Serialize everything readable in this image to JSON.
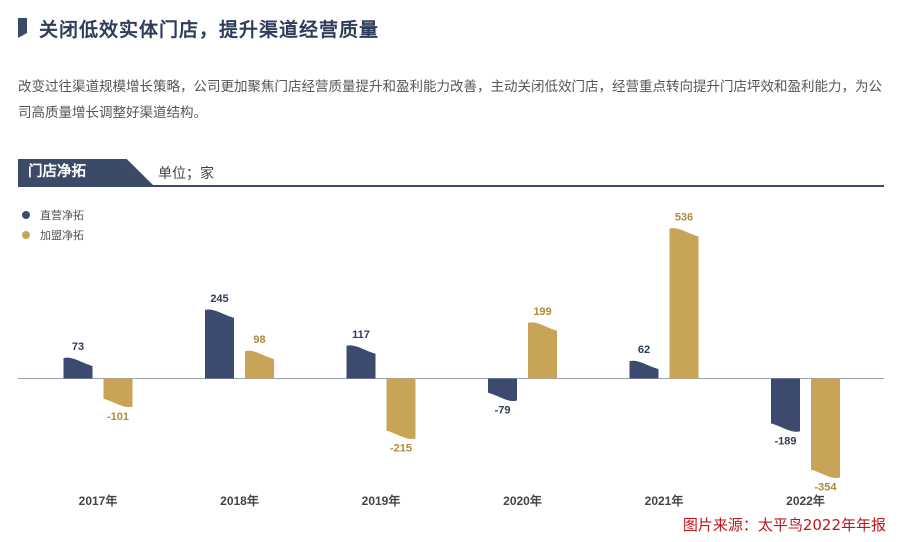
{
  "header": {
    "title": "关闭低效实体门店，提升渠道经营质量",
    "description": "改变过往渠道规模增长策略，公司更加聚焦门店经营质量提升和盈利能力改善，主动关闭低效门店，经营重点转向提升门店坪效和盈利能力，为公司高质量增长调整好渠道结构。"
  },
  "panel": {
    "tab_label": "门店净拓",
    "unit": "单位；家"
  },
  "source_text": "图片来源：太平鸟2022年年报",
  "colors": {
    "direct": "#3b4a6e",
    "franchise": "#c8a457",
    "accent": "#3b4a66",
    "source": "#c0161b"
  },
  "chart_data": {
    "type": "bar",
    "categories": [
      "2017年",
      "2018年",
      "2019年",
      "2020年",
      "2021年",
      "2022年"
    ],
    "series": [
      {
        "name": "直营净拓",
        "values": [
          73,
          245,
          117,
          -79,
          62,
          -189
        ]
      },
      {
        "name": "加盟净拓",
        "values": [
          -101,
          98,
          -215,
          199,
          536,
          -354
        ]
      }
    ],
    "title": "",
    "xlabel": "",
    "ylabel": "",
    "ylim": [
      -354,
      536
    ],
    "legend": "top-left",
    "grid": false
  }
}
